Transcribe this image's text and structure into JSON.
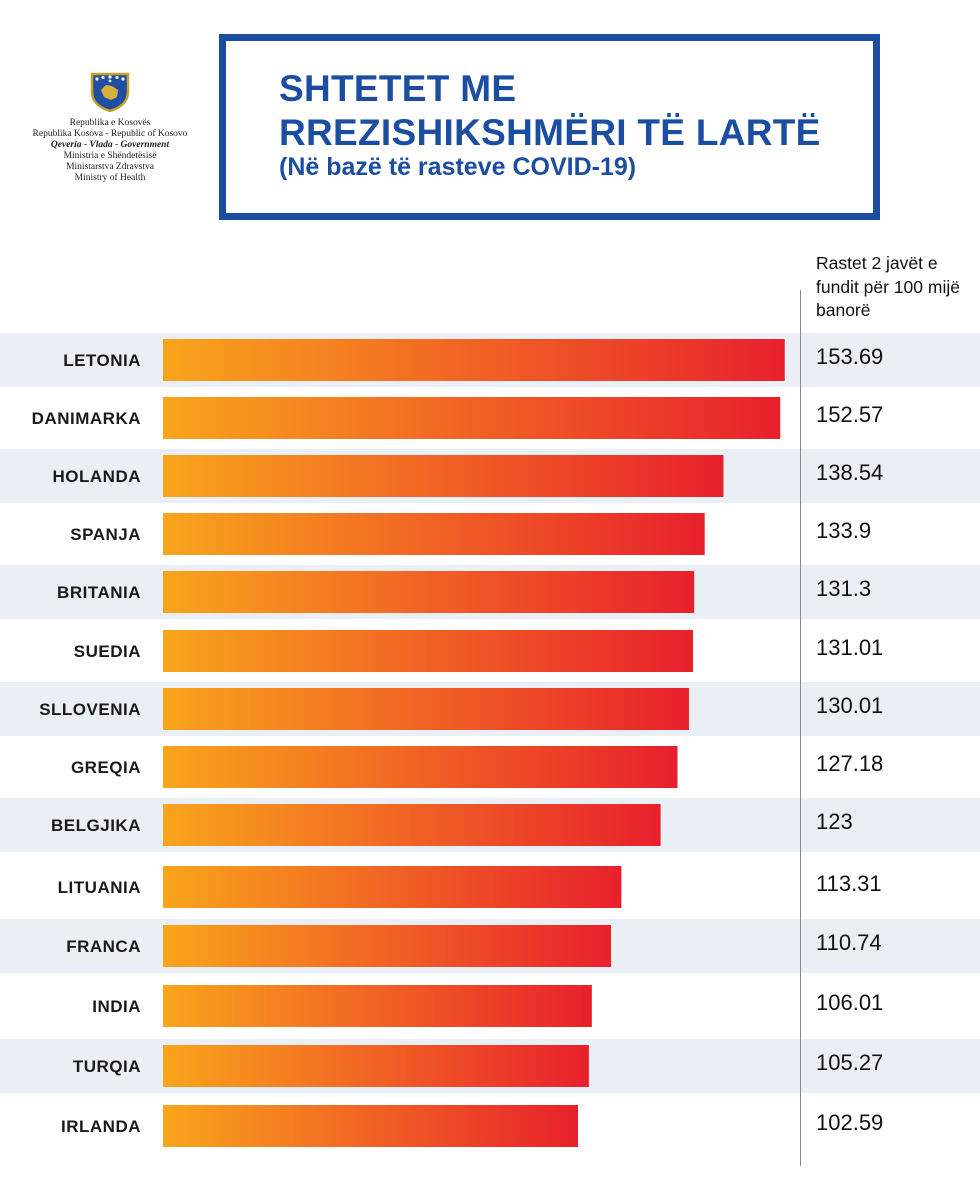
{
  "header": {
    "gov_lines": [
      "Republika e Kosovës",
      "Republika Kosova - Republic of Kosovo",
      "Qeveria - Vlada - Government",
      "Ministria e Shëndetësisë",
      "Ministarstva Zdravstva",
      "Ministry of Health"
    ],
    "title_line1": "SHTETET ME",
    "title_line2": "RREZISHIKSHMËRI TË LARTË",
    "subtitle": "(Në bazë të rasteve COVID-19)",
    "column_header": "Rastet 2 javët e fundit për 100 mijë banorë"
  },
  "colors": {
    "title_blue": "#1b4da0",
    "bar_start": "#f9a51c",
    "bar_end": "#e8202c",
    "band": "#eaeef5"
  },
  "emblem": "kosovo-coat-of-arms-icon",
  "chart_data": {
    "type": "bar",
    "orientation": "horizontal",
    "title": "SHTETET ME RREZISHIKSHMËRI TË LARTË",
    "subtitle": "(Në bazë të rasteve COVID-19)",
    "value_header": "Rastet 2 javët e fundit për 100 mijë banorë",
    "categories": [
      "LETONIA",
      "DANIMARKA",
      "HOLANDA",
      "SPANJA",
      "BRITANIA",
      "SUEDIA",
      "SLLOVENIA",
      "GREQIA",
      "BELGJIKA",
      "LITUANIA",
      "FRANCA",
      "INDIA",
      "TURQIA",
      "IRLANDA"
    ],
    "values": [
      153.69,
      152.57,
      138.54,
      133.9,
      131.3,
      131.01,
      130.01,
      127.18,
      123,
      113.31,
      110.74,
      106.01,
      105.27,
      102.59
    ],
    "value_labels": [
      "153.69",
      "152.57",
      "138.54",
      "133.9",
      "131.3",
      "131.01",
      "130.01",
      "127.18",
      "123",
      "113.31",
      "110.74",
      "106.01",
      "105.27",
      "102.59"
    ],
    "xlim": [
      0,
      154
    ],
    "grid": false,
    "legend": "none"
  }
}
